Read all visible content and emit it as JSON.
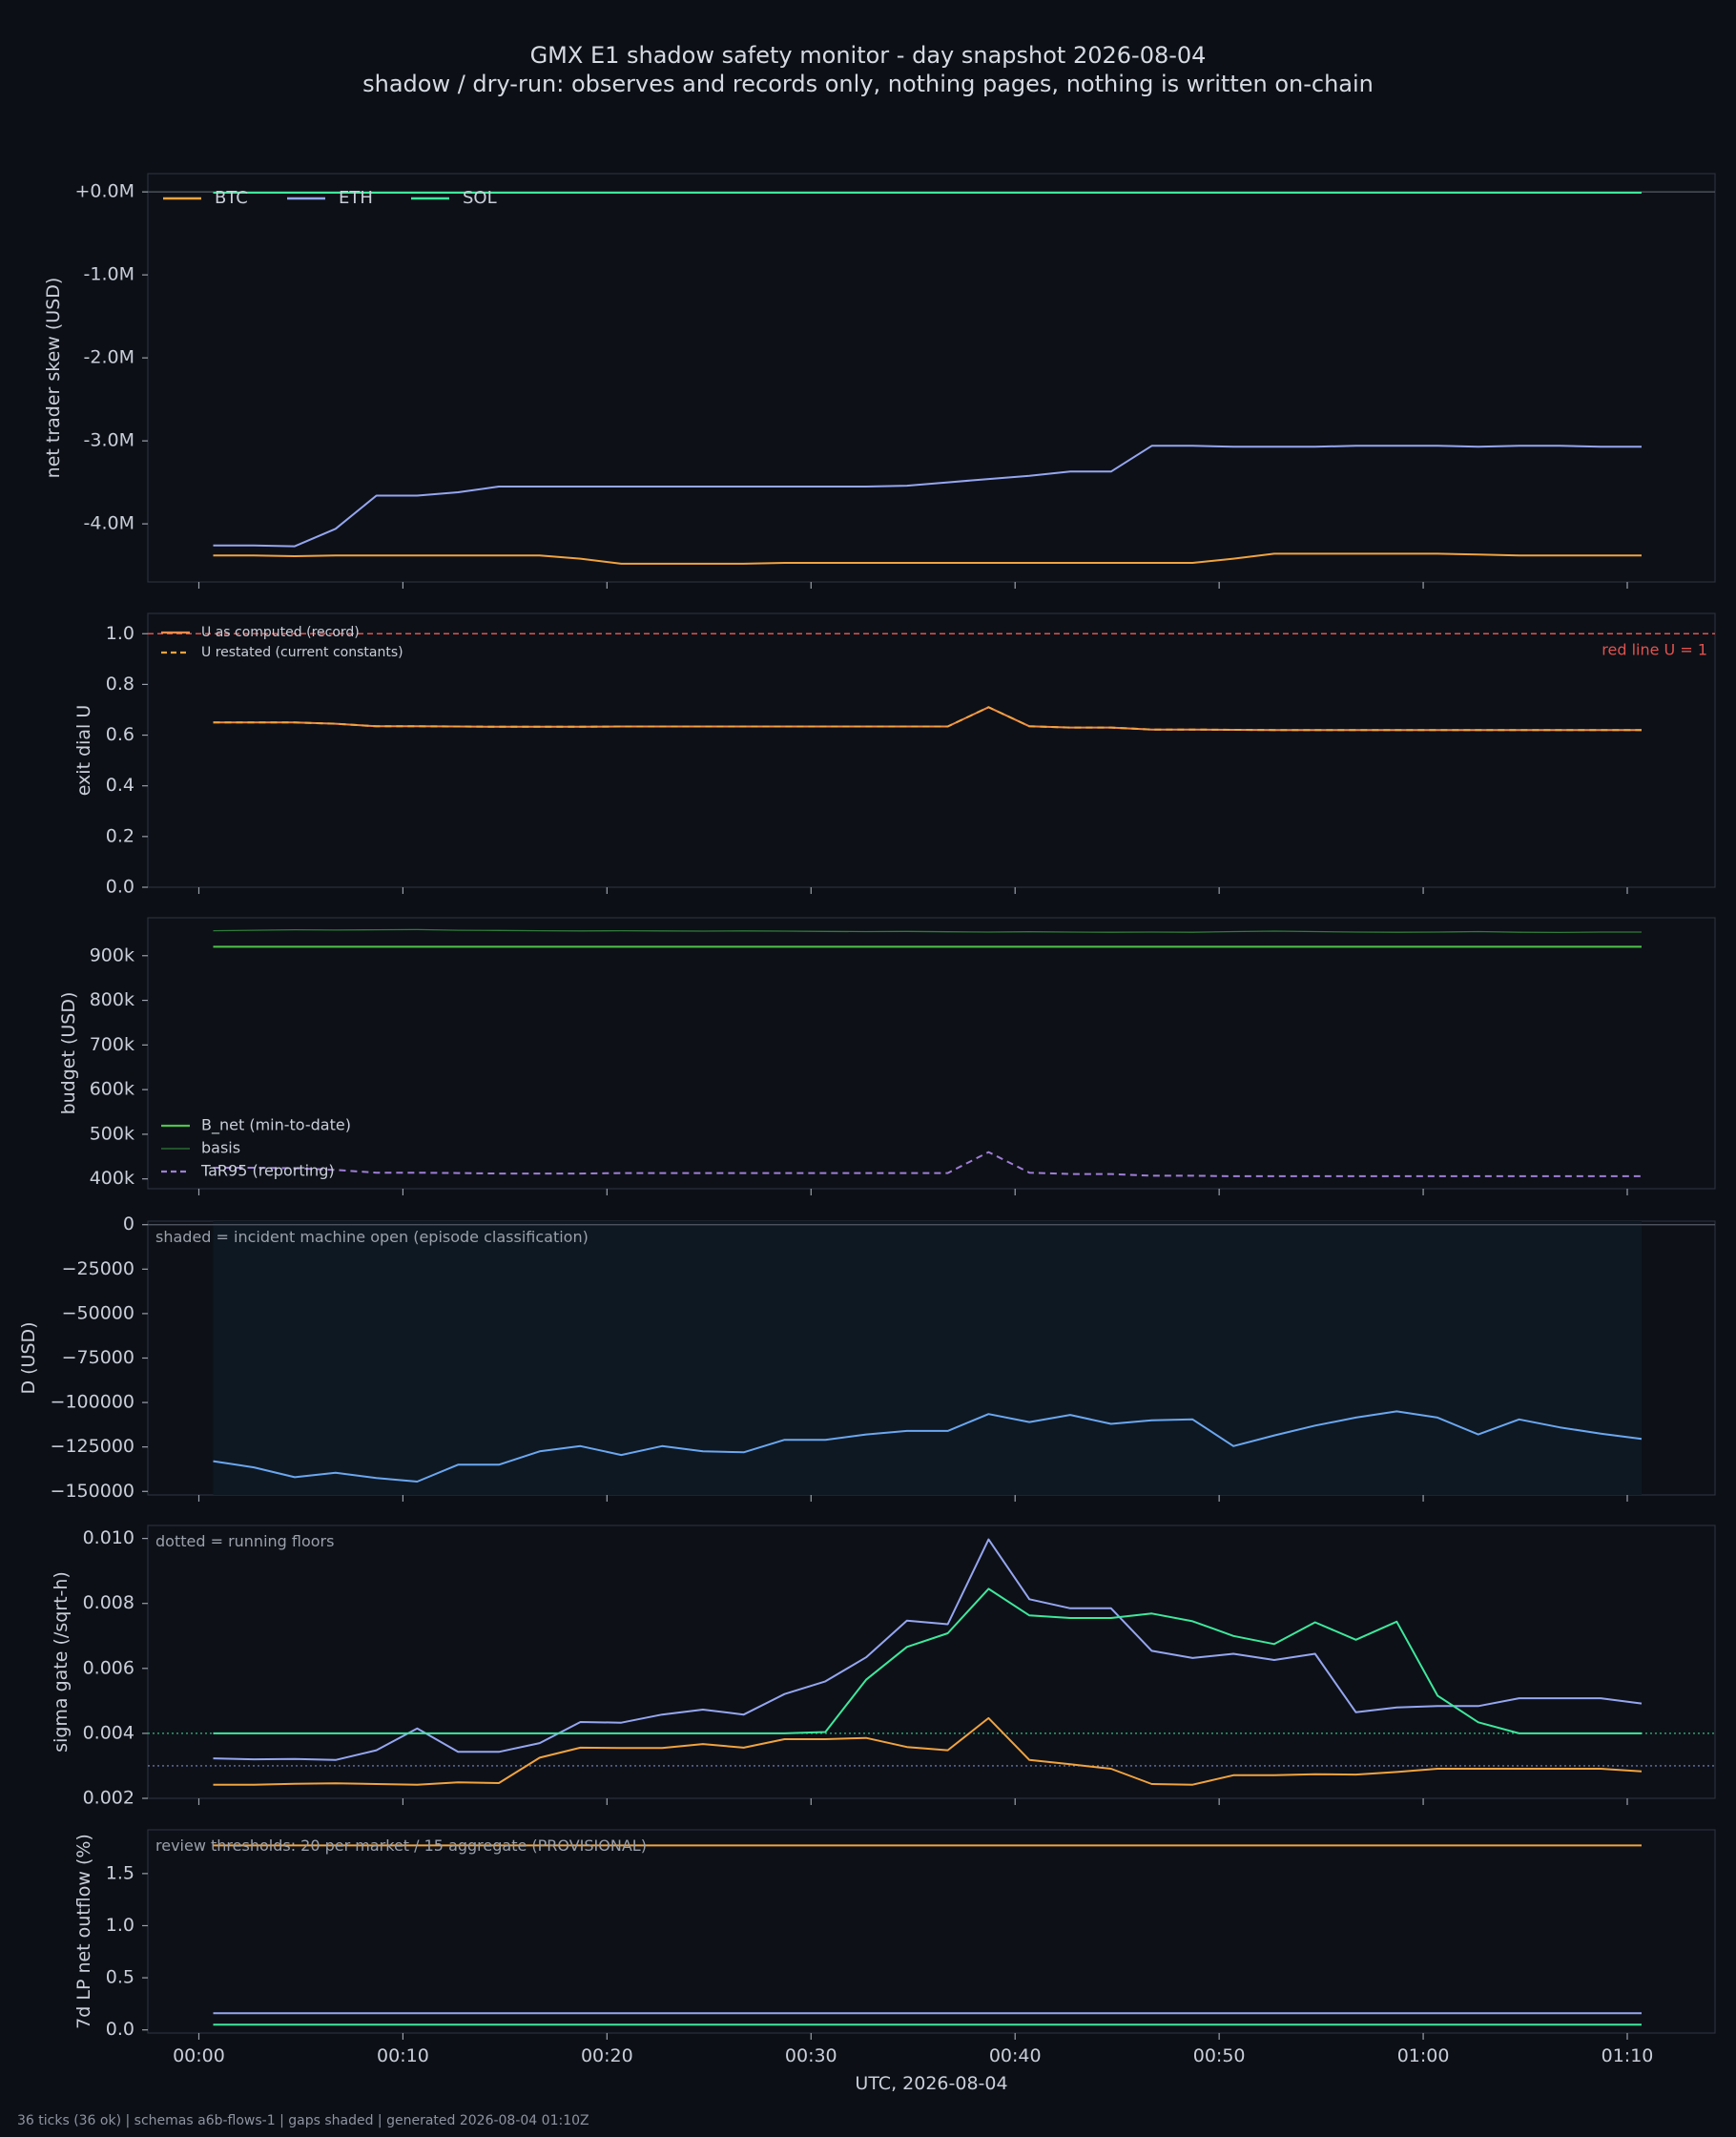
{
  "title": "GMX E1 shadow safety monitor - day snapshot 2026-08-04",
  "subtitle": "shadow / dry-run: observes and records only, nothing pages, nothing is written on-chain",
  "footer": "36 ticks (36 ok) | schemas a6b-flows-1 | gaps shaded | generated 2026-08-04 01:10Z",
  "colors": {
    "background": "#0c0f16",
    "panel": "#0d1017",
    "BTC": "#f0a340",
    "ETH": "#95a6f0",
    "SOL": "#3ee89c",
    "red_line": "#e0524f",
    "u_line": "#f08a48",
    "b_net": "#4ec44a",
    "basis": "#2f7a3a",
    "tar95": "#9f7ed6",
    "d_line": "#6ba7f0",
    "shade": "#0e1822"
  },
  "chart_data": {
    "xlabel": "UTC, 2026-08-04",
    "x_ticks": [
      "00:00",
      "00:10",
      "00:20",
      "00:30",
      "00:40",
      "00:50",
      "01:00",
      "01:10"
    ],
    "x_tick_minutes": [
      0,
      10,
      20,
      30,
      40,
      50,
      60,
      70
    ],
    "xlim": [
      -2.5,
      74.3
    ],
    "x_minutes": [
      0.7,
      2.7,
      4.7,
      6.7,
      8.7,
      10.7,
      12.7,
      14.7,
      16.7,
      18.7,
      20.7,
      22.7,
      24.7,
      26.7,
      28.7,
      30.7,
      32.7,
      34.7,
      36.7,
      38.7,
      40.7,
      42.7,
      44.7,
      46.7,
      48.7,
      50.7,
      52.7,
      54.7,
      56.7,
      58.7,
      60.7,
      62.7,
      64.7,
      66.7,
      68.7,
      70.7
    ],
    "panels": [
      {
        "id": "skew",
        "type": "line",
        "ylabel": "net trader skew (USD)",
        "ylim": [
          -4.7,
          0.22
        ],
        "y_ticks": [
          0,
          -1,
          -2,
          -3,
          -4
        ],
        "y_tick_labels": [
          "+0.0M",
          "-1.0M",
          "-2.0M",
          "-3.0M",
          "-4.0M"
        ],
        "zero_line": 0,
        "legend": [
          "BTC",
          "ETH",
          "SOL"
        ],
        "series": [
          {
            "name": "BTC",
            "color_key": "BTC",
            "values": [
              -4.38,
              -4.38,
              -4.39,
              -4.38,
              -4.38,
              -4.38,
              -4.38,
              -4.38,
              -4.38,
              -4.42,
              -4.48,
              -4.48,
              -4.48,
              -4.48,
              -4.47,
              -4.47,
              -4.47,
              -4.47,
              -4.47,
              -4.47,
              -4.47,
              -4.47,
              -4.47,
              -4.47,
              -4.47,
              -4.42,
              -4.36,
              -4.36,
              -4.36,
              -4.36,
              -4.36,
              -4.37,
              -4.38,
              -4.38,
              -4.38,
              -4.38
            ]
          },
          {
            "name": "ETH",
            "color_key": "ETH",
            "values": [
              -4.26,
              -4.26,
              -4.27,
              -4.06,
              -3.66,
              -3.66,
              -3.62,
              -3.55,
              -3.55,
              -3.55,
              -3.55,
              -3.55,
              -3.55,
              -3.55,
              -3.55,
              -3.55,
              -3.55,
              -3.54,
              -3.5,
              -3.46,
              -3.42,
              -3.37,
              -3.37,
              -3.06,
              -3.06,
              -3.07,
              -3.07,
              -3.07,
              -3.06,
              -3.06,
              -3.06,
              -3.07,
              -3.06,
              -3.06,
              -3.07,
              -3.07
            ]
          },
          {
            "name": "SOL",
            "color_key": "SOL",
            "values": [
              -0.01,
              -0.01,
              -0.01,
              -0.01,
              -0.01,
              -0.01,
              -0.01,
              -0.01,
              -0.01,
              -0.01,
              -0.01,
              -0.01,
              -0.01,
              -0.01,
              -0.01,
              -0.01,
              -0.01,
              -0.01,
              -0.01,
              -0.01,
              -0.01,
              -0.01,
              -0.01,
              -0.01,
              -0.01,
              -0.01,
              -0.01,
              -0.01,
              -0.01,
              -0.01,
              -0.01,
              -0.01,
              -0.01,
              -0.01,
              -0.01,
              -0.01
            ]
          }
        ]
      },
      {
        "id": "exit_dial",
        "type": "line",
        "ylabel": "exit dial U",
        "ylim": [
          0,
          1.08
        ],
        "y_ticks": [
          0,
          0.2,
          0.4,
          0.6,
          0.8,
          1.0
        ],
        "y_tick_labels": [
          "0.0",
          "0.2",
          "0.4",
          "0.6",
          "0.8",
          "1.0"
        ],
        "red_line": {
          "value": 1.0,
          "label": "red line U = 1"
        },
        "legend": [
          "U as computed (record)",
          "U restated (current constants)"
        ],
        "series": [
          {
            "name": "U as computed (record)",
            "color_key": "u_line",
            "values": [
              0.65,
              0.65,
              0.65,
              0.645,
              0.635,
              0.635,
              0.634,
              0.633,
              0.633,
              0.633,
              0.634,
              0.634,
              0.634,
              0.634,
              0.634,
              0.634,
              0.634,
              0.634,
              0.634,
              0.71,
              0.635,
              0.63,
              0.63,
              0.622,
              0.622,
              0.621,
              0.62,
              0.62,
              0.62,
              0.62,
              0.62,
              0.62,
              0.62,
              0.62,
              0.62,
              0.62
            ]
          },
          {
            "name": "U restated (current constants)",
            "color_key": "BTC",
            "dashed": true,
            "values": [
              0.65,
              0.65,
              0.65,
              0.645,
              0.635,
              0.635,
              0.634,
              0.633,
              0.633,
              0.633,
              0.634,
              0.634,
              0.634,
              0.634,
              0.634,
              0.634,
              0.634,
              0.634,
              0.634,
              0.71,
              0.635,
              0.63,
              0.63,
              0.622,
              0.622,
              0.621,
              0.62,
              0.62,
              0.62,
              0.62,
              0.62,
              0.62,
              0.62,
              0.62,
              0.62,
              0.62
            ]
          }
        ]
      },
      {
        "id": "budget",
        "type": "line",
        "ylabel": "budget (USD)",
        "ylim": [
          378000,
          985000
        ],
        "y_ticks": [
          400000,
          500000,
          600000,
          700000,
          800000,
          900000
        ],
        "y_tick_labels": [
          "400k",
          "500k",
          "600k",
          "700k",
          "800k",
          "900k"
        ],
        "legend": [
          "B_net (min-to-date)",
          "basis",
          "TaR95 (reporting)"
        ],
        "series": [
          {
            "name": "B_net (min-to-date)",
            "color_key": "b_net",
            "values": [
              920000,
              920000,
              920000,
              920000,
              920000,
              920000,
              920000,
              920000,
              920000,
              920000,
              920000,
              920000,
              920000,
              920000,
              920000,
              920000,
              920000,
              920000,
              920000,
              920000,
              920000,
              920000,
              920000,
              920000,
              920000,
              920000,
              920000,
              920000,
              920000,
              920000,
              920000,
              920000,
              920000,
              920000,
              920000,
              920000
            ]
          },
          {
            "name": "basis",
            "color_key": "basis",
            "values": [
              956000,
              957000,
              958000,
              957500,
              958000,
              958500,
              957000,
              956500,
              956000,
              955500,
              956000,
              955500,
              955000,
              955500,
              955000,
              954500,
              954000,
              954500,
              953500,
              953000,
              953500,
              953000,
              952500,
              953000,
              952500,
              954000,
              955000,
              954000,
              953000,
              952500,
              953000,
              954000,
              952500,
              952000,
              953000,
              953000
            ]
          },
          {
            "name": "TaR95 (reporting)",
            "color_key": "tar95",
            "dashed": true,
            "values": [
              425000,
              425000,
              424000,
              420000,
              414000,
              414000,
              413000,
              412000,
              412000,
              412000,
              413000,
              413000,
              413000,
              413000,
              413000,
              413000,
              413000,
              413000,
              413000,
              460000,
              414000,
              411000,
              411000,
              407000,
              407000,
              406000,
              406000,
              406000,
              406000,
              406000,
              406000,
              406000,
              406000,
              406000,
              406000,
              406000
            ]
          }
        ]
      },
      {
        "id": "D",
        "type": "area",
        "ylabel": "D (USD)",
        "ylim": [
          -152000,
          2000
        ],
        "y_ticks": [
          0,
          -25000,
          -50000,
          -75000,
          -100000,
          -125000,
          -150000
        ],
        "y_tick_labels": [
          "0",
          "−25000",
          "−50000",
          "−75000",
          "−100000",
          "−125000",
          "−150000"
        ],
        "zero_line": 0,
        "annotation": "shaded = incident machine open (episode classification)",
        "shade_range": [
          0.7,
          70.7
        ],
        "series": [
          {
            "name": "D",
            "color_key": "d_line",
            "values": [
              -133000,
              -136500,
              -142000,
              -139500,
              -142500,
              -144500,
              -135000,
              -135000,
              -127500,
              -124500,
              -129500,
              -124500,
              -127500,
              -128000,
              -121000,
              -121000,
              -118000,
              -116000,
              -116000,
              -106500,
              -111000,
              -107000,
              -112000,
              -110000,
              -109500,
              -124500,
              -118500,
              -113000,
              -108500,
              -105000,
              -108500,
              -118000,
              -109500,
              -114000,
              -117500,
              -120500
            ]
          }
        ]
      },
      {
        "id": "sigma",
        "type": "line",
        "ylabel": "sigma gate (/sqrt-h)",
        "ylim": [
          0.002,
          0.0104
        ],
        "y_ticks": [
          0.002,
          0.004,
          0.006,
          0.008,
          0.01
        ],
        "y_tick_labels": [
          "0.002",
          "0.004",
          "0.006",
          "0.008",
          "0.010"
        ],
        "annotation": "dotted = running floors",
        "floors": [
          {
            "value": 0.004,
            "color_key": "SOL"
          },
          {
            "value": 0.003,
            "color_key": "ETH"
          }
        ],
        "series": [
          {
            "name": "BTC",
            "color_key": "BTC",
            "values": [
              0.00242,
              0.00242,
              0.00245,
              0.00246,
              0.00244,
              0.00242,
              0.00249,
              0.00247,
              0.00325,
              0.00356,
              0.00355,
              0.00355,
              0.00367,
              0.00356,
              0.00382,
              0.00382,
              0.00386,
              0.00358,
              0.00348,
              0.00447,
              0.00318,
              0.00305,
              0.00291,
              0.00244,
              0.00242,
              0.00271,
              0.00271,
              0.00274,
              0.00273,
              0.00281,
              0.00291,
              0.00291,
              0.00291,
              0.00291,
              0.00291,
              0.00283
            ]
          },
          {
            "name": "ETH",
            "color_key": "ETH",
            "values": [
              0.00323,
              0.0032,
              0.00321,
              0.00318,
              0.00348,
              0.00415,
              0.00343,
              0.00343,
              0.0037,
              0.00435,
              0.00433,
              0.00458,
              0.00473,
              0.00458,
              0.00521,
              0.0056,
              0.00634,
              0.00747,
              0.00736,
              0.00997,
              0.00813,
              0.00785,
              0.00785,
              0.00654,
              0.00632,
              0.00645,
              0.00626,
              0.00645,
              0.00465,
              0.0048,
              0.00484,
              0.00484,
              0.00508,
              0.00508,
              0.00508,
              0.00492
            ]
          },
          {
            "name": "SOL",
            "color_key": "SOL",
            "values": [
              0.004,
              0.004,
              0.004,
              0.004,
              0.004,
              0.004,
              0.004,
              0.004,
              0.004,
              0.004,
              0.004,
              0.004,
              0.004,
              0.004,
              0.004,
              0.00404,
              0.00565,
              0.00666,
              0.00708,
              0.00845,
              0.00763,
              0.00755,
              0.00755,
              0.00769,
              0.00745,
              0.007,
              0.00675,
              0.00742,
              0.00688,
              0.00744,
              0.00516,
              0.00434,
              0.004,
              0.004,
              0.004,
              0.004
            ]
          }
        ]
      },
      {
        "id": "lp_outflow",
        "type": "line",
        "ylabel": "7d LP net outflow (%)",
        "ylim": [
          -0.03,
          1.92
        ],
        "y_ticks": [
          0,
          0.5,
          1.0,
          1.5
        ],
        "y_tick_labels": [
          "0.0",
          "0.5",
          "1.0",
          "1.5"
        ],
        "annotation": "review thresholds: 20 per market / 15 aggregate (PROVISIONAL)",
        "series": [
          {
            "name": "BTC",
            "color_key": "BTC",
            "values": [
              1.77,
              1.77,
              1.77,
              1.77,
              1.77,
              1.77,
              1.77,
              1.77,
              1.77,
              1.77,
              1.77,
              1.77,
              1.77,
              1.77,
              1.77,
              1.77,
              1.77,
              1.77,
              1.77,
              1.77,
              1.77,
              1.77,
              1.77,
              1.77,
              1.77,
              1.77,
              1.77,
              1.77,
              1.77,
              1.77,
              1.77,
              1.77,
              1.77,
              1.77,
              1.77,
              1.77
            ]
          },
          {
            "name": "ETH",
            "color_key": "ETH",
            "values": [
              0.16,
              0.16,
              0.16,
              0.16,
              0.16,
              0.16,
              0.16,
              0.16,
              0.16,
              0.16,
              0.16,
              0.16,
              0.16,
              0.16,
              0.16,
              0.16,
              0.16,
              0.16,
              0.16,
              0.16,
              0.16,
              0.16,
              0.16,
              0.16,
              0.16,
              0.16,
              0.16,
              0.16,
              0.16,
              0.16,
              0.16,
              0.16,
              0.16,
              0.16,
              0.16,
              0.16
            ]
          },
          {
            "name": "SOL",
            "color_key": "SOL",
            "values": [
              0.05,
              0.05,
              0.05,
              0.05,
              0.05,
              0.05,
              0.05,
              0.05,
              0.05,
              0.05,
              0.05,
              0.05,
              0.05,
              0.05,
              0.05,
              0.05,
              0.05,
              0.05,
              0.05,
              0.05,
              0.05,
              0.05,
              0.05,
              0.05,
              0.05,
              0.05,
              0.05,
              0.05,
              0.05,
              0.05,
              0.05,
              0.05,
              0.05,
              0.05,
              0.05,
              0.05
            ]
          }
        ]
      }
    ]
  }
}
